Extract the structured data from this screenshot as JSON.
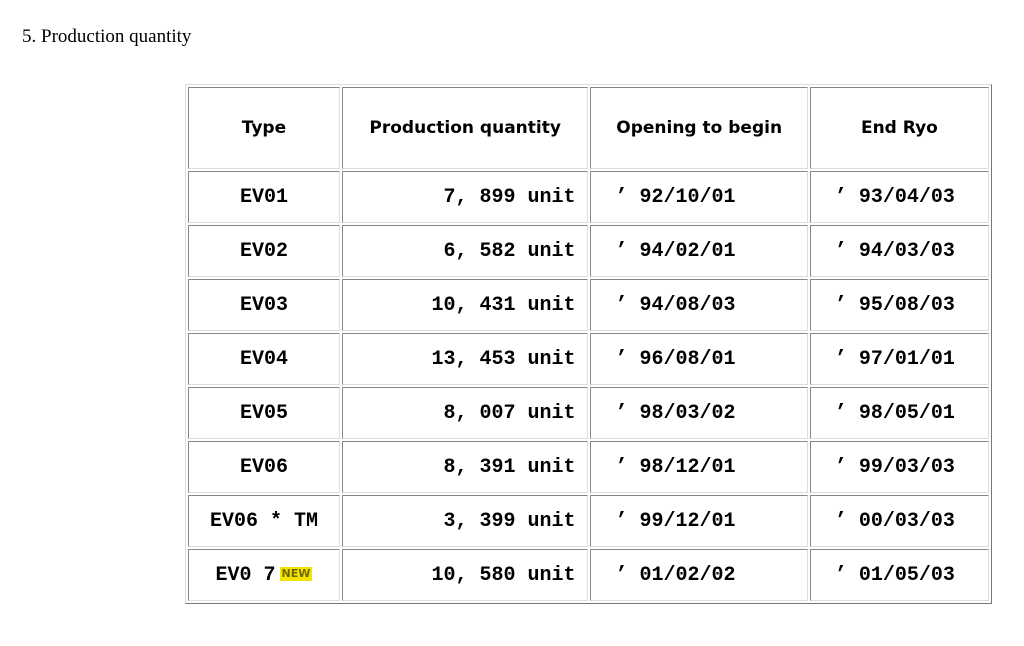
{
  "heading": "5. Production quantity",
  "table": {
    "headers": [
      "Type",
      "Production quantity",
      "Opening to begin",
      "End Ryo"
    ],
    "rows": [
      [
        "EV01",
        "7, 899 unit",
        "’ 92/10/01",
        "’ 93/04/03"
      ],
      [
        "EV02",
        "6, 582 unit",
        "’ 94/02/01",
        "’ 94/03/03"
      ],
      [
        "EV03",
        "10, 431 unit",
        "’ 94/08/03",
        "’ 95/08/03"
      ],
      [
        "EV04",
        "13, 453 unit",
        "’ 96/08/01",
        "’ 97/01/01"
      ],
      [
        "EV05",
        "8, 007 unit",
        "’ 98/03/02",
        "’ 98/05/01"
      ],
      [
        "EV06",
        "8, 391 unit",
        "’ 98/12/01",
        "’ 99/03/03"
      ],
      [
        "EV06 * TM",
        "3, 399 unit",
        "’ 99/12/01",
        "’ 00/03/03"
      ],
      [
        "EV0 7",
        "10, 580 unit",
        "’ 01/02/02",
        "’ 01/05/03"
      ]
    ],
    "new_badge": "NEW"
  }
}
